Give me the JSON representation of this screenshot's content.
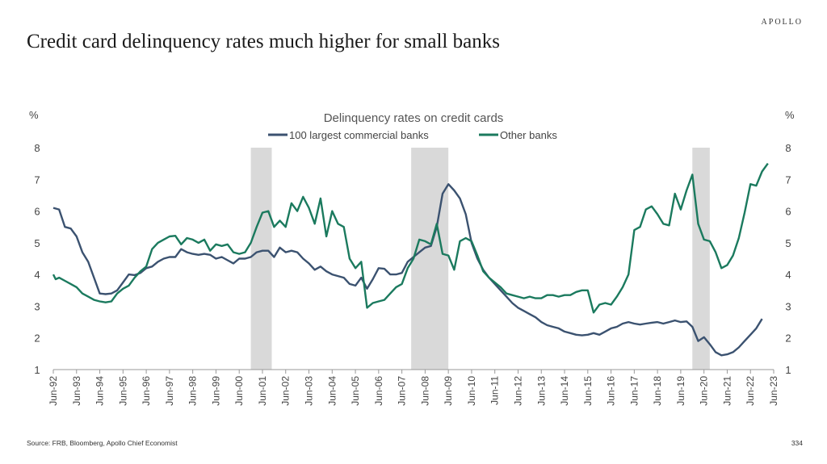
{
  "brand": "APOLLO",
  "title": "Credit card delinquency rates much higher for small banks",
  "source": "Source: FRB, Bloomberg, Apollo Chief Economist",
  "page_number": "334",
  "chart_data": {
    "type": "line",
    "title": "Delinquency rates on credit cards",
    "ylabel_left": "%",
    "ylabel_right": "%",
    "ylim": [
      1,
      8
    ],
    "yticks": [
      1,
      2,
      3,
      4,
      5,
      6,
      7,
      8
    ],
    "xlim": [
      1992.5,
      2023.5
    ],
    "xticks": [
      "Jun-92",
      "Jun-93",
      "Jun-94",
      "Jun-95",
      "Jun-96",
      "Jun-97",
      "Jun-98",
      "Jun-99",
      "Jun-00",
      "Jun-01",
      "Jun-02",
      "Jun-03",
      "Jun-04",
      "Jun-05",
      "Jun-06",
      "Jun-07",
      "Jun-08",
      "Jun-09",
      "Jun-10",
      "Jun-11",
      "Jun-12",
      "Jun-13",
      "Jun-14",
      "Jun-15",
      "Jun-16",
      "Jun-17",
      "Jun-18",
      "Jun-19",
      "Jun-20",
      "Jun-21",
      "Jun-22",
      "Jun-23"
    ],
    "recessions": [
      [
        2001.0,
        2001.9
      ],
      [
        2007.9,
        2009.5
      ],
      [
        2020.0,
        2020.75
      ]
    ],
    "series": [
      {
        "name": "100 largest commercial banks",
        "color": "#3b5270",
        "points": [
          [
            1992.5,
            6.1
          ],
          [
            1992.75,
            6.05
          ],
          [
            1993.0,
            5.5
          ],
          [
            1993.25,
            5.45
          ],
          [
            1993.5,
            5.2
          ],
          [
            1993.75,
            4.7
          ],
          [
            1994.0,
            4.4
          ],
          [
            1994.25,
            3.9
          ],
          [
            1994.5,
            3.4
          ],
          [
            1994.75,
            3.38
          ],
          [
            1995.0,
            3.4
          ],
          [
            1995.25,
            3.5
          ],
          [
            1995.5,
            3.75
          ],
          [
            1995.75,
            4.0
          ],
          [
            1996.0,
            3.98
          ],
          [
            1996.25,
            4.05
          ],
          [
            1996.5,
            4.2
          ],
          [
            1996.75,
            4.25
          ],
          [
            1997.0,
            4.4
          ],
          [
            1997.25,
            4.5
          ],
          [
            1997.5,
            4.55
          ],
          [
            1997.75,
            4.55
          ],
          [
            1998.0,
            4.8
          ],
          [
            1998.25,
            4.7
          ],
          [
            1998.5,
            4.65
          ],
          [
            1998.75,
            4.62
          ],
          [
            1999.0,
            4.65
          ],
          [
            1999.25,
            4.62
          ],
          [
            1999.5,
            4.5
          ],
          [
            1999.75,
            4.55
          ],
          [
            2000.0,
            4.45
          ],
          [
            2000.25,
            4.35
          ],
          [
            2000.5,
            4.5
          ],
          [
            2000.75,
            4.5
          ],
          [
            2001.0,
            4.55
          ],
          [
            2001.25,
            4.7
          ],
          [
            2001.5,
            4.75
          ],
          [
            2001.75,
            4.75
          ],
          [
            2002.0,
            4.55
          ],
          [
            2002.25,
            4.85
          ],
          [
            2002.5,
            4.7
          ],
          [
            2002.75,
            4.75
          ],
          [
            2003.0,
            4.7
          ],
          [
            2003.25,
            4.5
          ],
          [
            2003.5,
            4.35
          ],
          [
            2003.75,
            4.15
          ],
          [
            2004.0,
            4.25
          ],
          [
            2004.25,
            4.1
          ],
          [
            2004.5,
            4.0
          ],
          [
            2004.75,
            3.95
          ],
          [
            2005.0,
            3.9
          ],
          [
            2005.25,
            3.7
          ],
          [
            2005.5,
            3.65
          ],
          [
            2005.75,
            3.9
          ],
          [
            2006.0,
            3.55
          ],
          [
            2006.25,
            3.85
          ],
          [
            2006.5,
            4.2
          ],
          [
            2006.75,
            4.18
          ],
          [
            2007.0,
            4.0
          ],
          [
            2007.25,
            4.0
          ],
          [
            2007.5,
            4.05
          ],
          [
            2007.75,
            4.4
          ],
          [
            2008.0,
            4.55
          ],
          [
            2008.25,
            4.7
          ],
          [
            2008.5,
            4.85
          ],
          [
            2008.75,
            4.9
          ],
          [
            2009.0,
            5.5
          ],
          [
            2009.25,
            6.55
          ],
          [
            2009.5,
            6.85
          ],
          [
            2009.75,
            6.65
          ],
          [
            2010.0,
            6.4
          ],
          [
            2010.25,
            5.9
          ],
          [
            2010.5,
            5.0
          ],
          [
            2010.75,
            4.5
          ],
          [
            2011.0,
            4.15
          ],
          [
            2011.25,
            3.9
          ],
          [
            2011.5,
            3.7
          ],
          [
            2011.75,
            3.5
          ],
          [
            2012.0,
            3.3
          ],
          [
            2012.25,
            3.1
          ],
          [
            2012.5,
            2.95
          ],
          [
            2012.75,
            2.85
          ],
          [
            2013.0,
            2.75
          ],
          [
            2013.25,
            2.65
          ],
          [
            2013.5,
            2.5
          ],
          [
            2013.75,
            2.4
          ],
          [
            2014.0,
            2.35
          ],
          [
            2014.25,
            2.3
          ],
          [
            2014.5,
            2.2
          ],
          [
            2014.75,
            2.15
          ],
          [
            2015.0,
            2.1
          ],
          [
            2015.25,
            2.08
          ],
          [
            2015.5,
            2.1
          ],
          [
            2015.75,
            2.15
          ],
          [
            2016.0,
            2.1
          ],
          [
            2016.25,
            2.2
          ],
          [
            2016.5,
            2.3
          ],
          [
            2016.75,
            2.35
          ],
          [
            2017.0,
            2.45
          ],
          [
            2017.25,
            2.5
          ],
          [
            2017.5,
            2.45
          ],
          [
            2017.75,
            2.42
          ],
          [
            2018.0,
            2.45
          ],
          [
            2018.25,
            2.48
          ],
          [
            2018.5,
            2.5
          ],
          [
            2018.75,
            2.45
          ],
          [
            2019.0,
            2.5
          ],
          [
            2019.25,
            2.55
          ],
          [
            2019.5,
            2.5
          ],
          [
            2019.75,
            2.52
          ],
          [
            2020.0,
            2.35
          ],
          [
            2020.25,
            1.9
          ],
          [
            2020.5,
            2.02
          ],
          [
            2020.75,
            1.8
          ],
          [
            2021.0,
            1.55
          ],
          [
            2021.25,
            1.45
          ],
          [
            2021.5,
            1.48
          ],
          [
            2021.75,
            1.55
          ],
          [
            2022.0,
            1.7
          ],
          [
            2022.25,
            1.9
          ],
          [
            2022.5,
            2.1
          ],
          [
            2022.75,
            2.3
          ],
          [
            2023.0,
            2.6
          ]
        ]
      },
      {
        "name": "Other banks",
        "color": "#1b7a5e",
        "points": [
          [
            1992.5,
            4.0
          ],
          [
            1992.6,
            3.85
          ],
          [
            1992.75,
            3.9
          ],
          [
            1993.0,
            3.8
          ],
          [
            1993.25,
            3.7
          ],
          [
            1993.5,
            3.6
          ],
          [
            1993.75,
            3.4
          ],
          [
            1994.0,
            3.3
          ],
          [
            1994.25,
            3.2
          ],
          [
            1994.5,
            3.15
          ],
          [
            1994.75,
            3.12
          ],
          [
            1995.0,
            3.15
          ],
          [
            1995.25,
            3.4
          ],
          [
            1995.5,
            3.55
          ],
          [
            1995.75,
            3.65
          ],
          [
            1996.0,
            3.9
          ],
          [
            1996.25,
            4.1
          ],
          [
            1996.5,
            4.25
          ],
          [
            1996.75,
            4.8
          ],
          [
            1997.0,
            5.0
          ],
          [
            1997.25,
            5.1
          ],
          [
            1997.5,
            5.2
          ],
          [
            1997.75,
            5.22
          ],
          [
            1998.0,
            4.95
          ],
          [
            1998.25,
            5.15
          ],
          [
            1998.5,
            5.1
          ],
          [
            1998.75,
            5.0
          ],
          [
            1999.0,
            5.1
          ],
          [
            1999.25,
            4.75
          ],
          [
            1999.5,
            4.95
          ],
          [
            1999.75,
            4.9
          ],
          [
            2000.0,
            4.95
          ],
          [
            2000.25,
            4.7
          ],
          [
            2000.5,
            4.65
          ],
          [
            2000.75,
            4.7
          ],
          [
            2001.0,
            5.0
          ],
          [
            2001.25,
            5.5
          ],
          [
            2001.5,
            5.95
          ],
          [
            2001.75,
            6.0
          ],
          [
            2002.0,
            5.5
          ],
          [
            2002.25,
            5.7
          ],
          [
            2002.5,
            5.5
          ],
          [
            2002.75,
            6.25
          ],
          [
            2003.0,
            6.0
          ],
          [
            2003.25,
            6.45
          ],
          [
            2003.5,
            6.1
          ],
          [
            2003.75,
            5.6
          ],
          [
            2004.0,
            6.4
          ],
          [
            2004.25,
            5.2
          ],
          [
            2004.5,
            6.0
          ],
          [
            2004.75,
            5.6
          ],
          [
            2005.0,
            5.5
          ],
          [
            2005.25,
            4.5
          ],
          [
            2005.5,
            4.2
          ],
          [
            2005.75,
            4.4
          ],
          [
            2006.0,
            2.95
          ],
          [
            2006.25,
            3.1
          ],
          [
            2006.5,
            3.15
          ],
          [
            2006.75,
            3.2
          ],
          [
            2007.0,
            3.4
          ],
          [
            2007.25,
            3.6
          ],
          [
            2007.5,
            3.7
          ],
          [
            2007.75,
            4.2
          ],
          [
            2008.0,
            4.5
          ],
          [
            2008.25,
            5.1
          ],
          [
            2008.5,
            5.05
          ],
          [
            2008.75,
            4.95
          ],
          [
            2009.0,
            5.6
          ],
          [
            2009.25,
            4.65
          ],
          [
            2009.5,
            4.6
          ],
          [
            2009.75,
            4.15
          ],
          [
            2010.0,
            5.05
          ],
          [
            2010.25,
            5.15
          ],
          [
            2010.5,
            5.05
          ],
          [
            2010.75,
            4.6
          ],
          [
            2011.0,
            4.1
          ],
          [
            2011.25,
            3.9
          ],
          [
            2011.5,
            3.75
          ],
          [
            2011.75,
            3.6
          ],
          [
            2012.0,
            3.4
          ],
          [
            2012.25,
            3.35
          ],
          [
            2012.5,
            3.3
          ],
          [
            2012.75,
            3.25
          ],
          [
            2013.0,
            3.3
          ],
          [
            2013.25,
            3.25
          ],
          [
            2013.5,
            3.25
          ],
          [
            2013.75,
            3.35
          ],
          [
            2014.0,
            3.35
          ],
          [
            2014.25,
            3.3
          ],
          [
            2014.5,
            3.35
          ],
          [
            2014.75,
            3.35
          ],
          [
            2015.0,
            3.45
          ],
          [
            2015.25,
            3.5
          ],
          [
            2015.5,
            3.5
          ],
          [
            2015.75,
            2.8
          ],
          [
            2016.0,
            3.05
          ],
          [
            2016.25,
            3.1
          ],
          [
            2016.5,
            3.05
          ],
          [
            2016.75,
            3.3
          ],
          [
            2017.0,
            3.6
          ],
          [
            2017.25,
            4.0
          ],
          [
            2017.5,
            5.4
          ],
          [
            2017.75,
            5.5
          ],
          [
            2018.0,
            6.05
          ],
          [
            2018.25,
            6.15
          ],
          [
            2018.5,
            5.9
          ],
          [
            2018.75,
            5.6
          ],
          [
            2019.0,
            5.55
          ],
          [
            2019.25,
            6.55
          ],
          [
            2019.5,
            6.05
          ],
          [
            2019.75,
            6.65
          ],
          [
            2020.0,
            7.15
          ],
          [
            2020.25,
            5.6
          ],
          [
            2020.5,
            5.1
          ],
          [
            2020.75,
            5.05
          ],
          [
            2021.0,
            4.7
          ],
          [
            2021.25,
            4.2
          ],
          [
            2021.5,
            4.3
          ],
          [
            2021.75,
            4.6
          ],
          [
            2022.0,
            5.15
          ],
          [
            2022.25,
            5.95
          ],
          [
            2022.5,
            6.85
          ],
          [
            2022.75,
            6.8
          ],
          [
            2023.0,
            7.25
          ],
          [
            2023.25,
            7.5
          ]
        ]
      }
    ]
  }
}
